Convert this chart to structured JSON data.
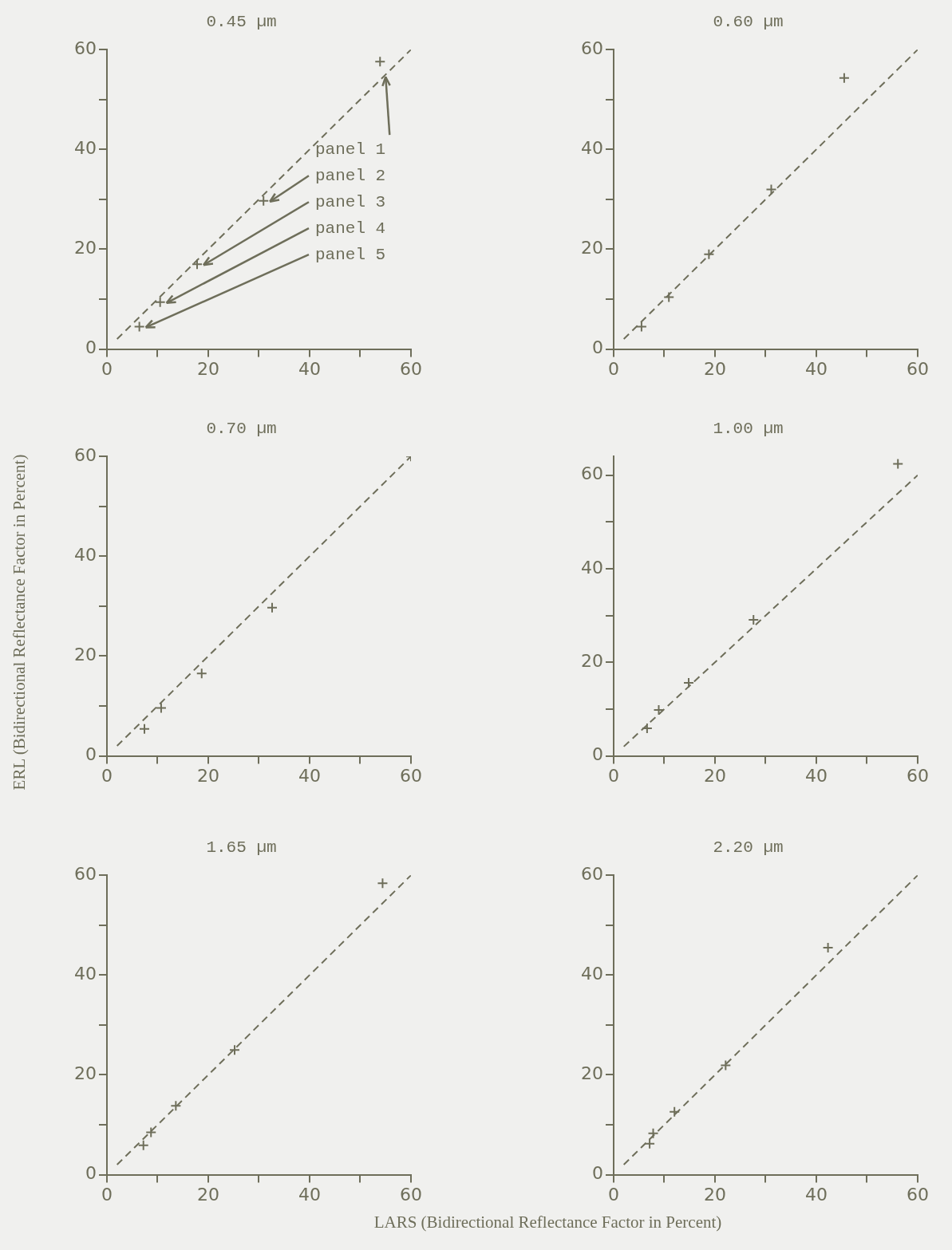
{
  "chart_data": [
    {
      "type": "scatter",
      "title": "0.45 µm",
      "xlim": [
        0,
        60
      ],
      "ylim": [
        0,
        60
      ],
      "xticks": [
        0,
        {
          "value": 10,
          "label": null
        },
        20,
        {
          "value": 30,
          "label": null
        },
        40,
        {
          "value": 50,
          "label": null
        },
        60
      ],
      "yticks": [
        0,
        {
          "value": 10,
          "label": null
        },
        20,
        {
          "value": 30,
          "label": null
        },
        40,
        {
          "value": 50,
          "label": null
        },
        60
      ],
      "grid": false,
      "legend": false,
      "series": [
        {
          "type": "scatter",
          "color": "#6e6e5a",
          "marker": "cross",
          "x": [
            6.4,
            10.5,
            17.8,
            30.9,
            53.9
          ],
          "values": [
            4.5,
            9.4,
            17.0,
            29.7,
            57.6
          ]
        },
        {
          "type": "line",
          "color": "#6e6e5a",
          "marker": "none",
          "line_style": "dashed",
          "x": [
            2,
            60
          ],
          "values": [
            2,
            60
          ]
        }
      ],
      "annotations": [
        {
          "text": "panel 1",
          "x": 55,
          "y": 55
        },
        {
          "text": "panel 2",
          "x": 30.9,
          "y": 29.7
        },
        {
          "text": "panel 3",
          "x": 17.8,
          "y": 17.0
        },
        {
          "text": "panel 4",
          "x": 10.5,
          "y": 9.4
        },
        {
          "text": "panel 5",
          "x": 6.4,
          "y": 4.5
        }
      ]
    },
    {
      "type": "scatter",
      "title": "0.60 µm",
      "xlim": [
        0,
        60
      ],
      "ylim": [
        0,
        60
      ],
      "xticks": [
        0,
        {
          "value": 10,
          "label": null
        },
        20,
        {
          "value": 30,
          "label": null
        },
        40,
        {
          "value": 50,
          "label": null
        },
        60
      ],
      "yticks": [
        0,
        {
          "value": 10,
          "label": null
        },
        20,
        {
          "value": 30,
          "label": null
        },
        40,
        {
          "value": 50,
          "label": null
        },
        60
      ],
      "grid": false,
      "legend": false,
      "series": [
        {
          "type": "scatter",
          "color": "#6e6e5a",
          "marker": "cross",
          "x": [
            5.5,
            10.9,
            18.8,
            31.1,
            45.5
          ],
          "values": [
            4.5,
            10.4,
            19.0,
            32.0,
            54.3
          ]
        },
        {
          "type": "line",
          "color": "#6e6e5a",
          "marker": "none",
          "line_style": "dashed",
          "x": [
            2,
            60
          ],
          "values": [
            2,
            60
          ]
        }
      ]
    },
    {
      "type": "scatter",
      "title": "0.70 µm",
      "ylabel": "ERL (Bidirectional Reflectance Factor in Percent)",
      "xlim": [
        0,
        60
      ],
      "ylim": [
        0,
        60
      ],
      "xticks": [
        0,
        {
          "value": 10,
          "label": null
        },
        20,
        {
          "value": 30,
          "label": null
        },
        40,
        {
          "value": 50,
          "label": null
        },
        60
      ],
      "yticks": [
        0,
        {
          "value": 10,
          "label": null
        },
        20,
        {
          "value": 30,
          "label": null
        },
        40,
        {
          "value": 50,
          "label": null
        },
        60
      ],
      "grid": false,
      "legend": false,
      "series": [
        {
          "type": "scatter",
          "color": "#6e6e5a",
          "marker": "cross",
          "x": [
            7.4,
            10.7,
            18.7,
            32.6,
            60
          ],
          "values": [
            5.4,
            9.6,
            16.5,
            29.7,
            60
          ]
        },
        {
          "type": "line",
          "color": "#6e6e5a",
          "marker": "none",
          "line_style": "dashed",
          "x": [
            2,
            60
          ],
          "values": [
            2,
            60
          ]
        }
      ]
    },
    {
      "type": "scatter",
      "title": "1.00 µm",
      "xlim": [
        0,
        60
      ],
      "ylim": [
        0,
        64
      ],
      "xticks": [
        0,
        {
          "value": 10,
          "label": null
        },
        20,
        {
          "value": 30,
          "label": null
        },
        40,
        {
          "value": 50,
          "label": null
        },
        60
      ],
      "yticks": [
        0,
        {
          "value": 10,
          "label": null
        },
        20,
        {
          "value": 30,
          "label": null
        },
        40,
        {
          "value": 50,
          "label": null
        },
        60
      ],
      "grid": false,
      "legend": false,
      "series": [
        {
          "type": "scatter",
          "color": "#6e6e5a",
          "marker": "cross",
          "x": [
            6.6,
            8.9,
            14.8,
            27.6,
            56.1
          ],
          "values": [
            5.9,
            9.8,
            15.6,
            29.1,
            62.4
          ]
        },
        {
          "type": "line",
          "color": "#6e6e5a",
          "marker": "none",
          "line_style": "dashed",
          "x": [
            2,
            60
          ],
          "values": [
            2,
            60
          ]
        }
      ]
    },
    {
      "type": "scatter",
      "title": "1.65 µm",
      "xlim": [
        0,
        60
      ],
      "ylim": [
        0,
        60
      ],
      "xticks": [
        0,
        {
          "value": 10,
          "label": null
        },
        20,
        {
          "value": 30,
          "label": null
        },
        40,
        {
          "value": 50,
          "label": null
        },
        60
      ],
      "yticks": [
        0,
        {
          "value": 10,
          "label": null
        },
        20,
        {
          "value": 30,
          "label": null
        },
        40,
        {
          "value": 50,
          "label": null
        },
        60
      ],
      "grid": false,
      "legend": false,
      "series": [
        {
          "type": "scatter",
          "color": "#6e6e5a",
          "marker": "cross",
          "x": [
            7.2,
            8.7,
            13.6,
            25.2,
            54.4
          ],
          "values": [
            5.9,
            8.5,
            13.8,
            25.0,
            58.4
          ]
        },
        {
          "type": "line",
          "color": "#6e6e5a",
          "marker": "none",
          "line_style": "dashed",
          "x": [
            2,
            60
          ],
          "values": [
            2,
            60
          ]
        }
      ]
    },
    {
      "type": "scatter",
      "title": "2.20 µm",
      "xlabel": "LARS (Bidirectional Reflectance Factor in Percent)",
      "xlim": [
        0,
        60
      ],
      "ylim": [
        0,
        60
      ],
      "xticks": [
        0,
        {
          "value": 10,
          "label": null
        },
        20,
        {
          "value": 30,
          "label": null
        },
        40,
        {
          "value": 50,
          "label": null
        },
        60
      ],
      "yticks": [
        0,
        {
          "value": 10,
          "label": null
        },
        20,
        {
          "value": 30,
          "label": null
        },
        40,
        {
          "value": 50,
          "label": null
        },
        60
      ],
      "grid": false,
      "legend": false,
      "series": [
        {
          "type": "scatter",
          "color": "#6e6e5a",
          "marker": "cross",
          "x": [
            7.1,
            7.8,
            12.0,
            22.1,
            42.3
          ],
          "values": [
            6.2,
            8.3,
            12.6,
            21.9,
            45.5
          ]
        },
        {
          "type": "line",
          "color": "#6e6e5a",
          "marker": "none",
          "line_style": "dashed",
          "x": [
            2,
            60
          ],
          "values": [
            2,
            60
          ]
        }
      ]
    }
  ]
}
